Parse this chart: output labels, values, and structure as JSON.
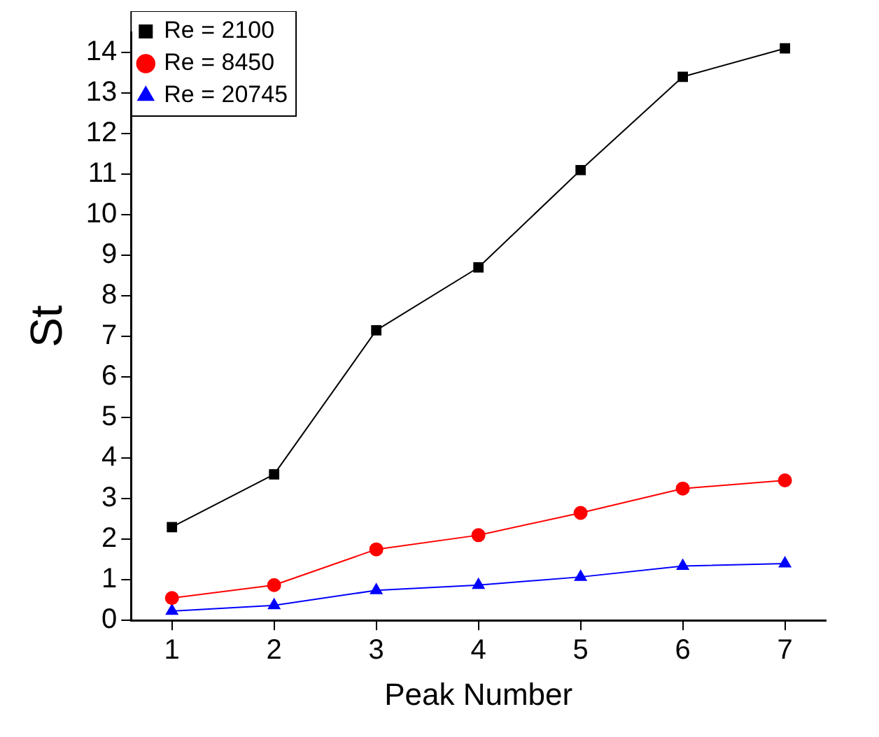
{
  "chart_data": {
    "type": "line",
    "xlabel": "Peak Number",
    "ylabel": "St",
    "x": [
      1,
      2,
      3,
      4,
      5,
      6,
      7
    ],
    "series": [
      {
        "name": "Re = 2100",
        "color": "#000000",
        "marker": "square",
        "values": [
          2.3,
          3.6,
          7.15,
          8.7,
          11.1,
          13.4,
          14.1
        ]
      },
      {
        "name": "Re = 8450",
        "color": "#ff0000",
        "marker": "circle",
        "values": [
          0.55,
          0.87,
          1.75,
          2.1,
          2.65,
          3.25,
          3.45
        ]
      },
      {
        "name": "Re = 20745",
        "color": "#0000ff",
        "marker": "triangle",
        "values": [
          0.23,
          0.37,
          0.74,
          0.87,
          1.07,
          1.34,
          1.4
        ]
      }
    ],
    "xlim": [
      0.6,
      7.4
    ],
    "xticks": [
      1,
      2,
      3,
      4,
      5,
      6,
      7
    ],
    "ylim": [
      0,
      14.5
    ],
    "yticks": [
      0,
      1,
      2,
      3,
      4,
      5,
      6,
      7,
      8,
      9,
      10,
      11,
      12,
      13,
      14
    ],
    "grid": false,
    "legend": "top left",
    "line_style": "solid"
  }
}
